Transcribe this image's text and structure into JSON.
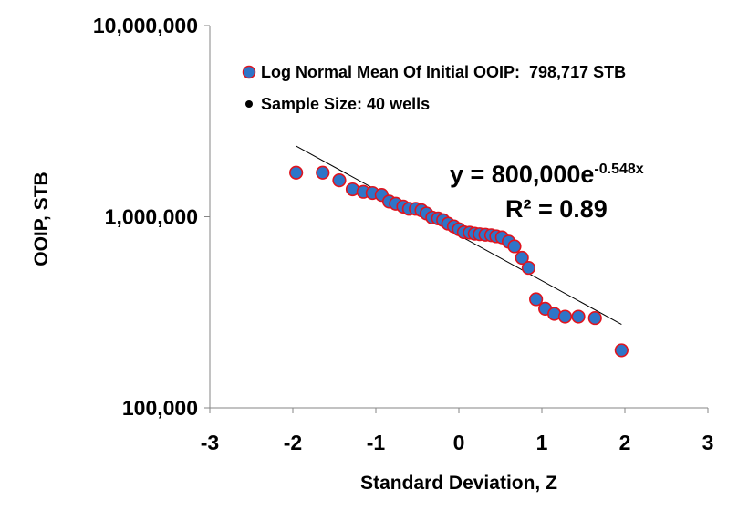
{
  "chart_data": {
    "type": "scatter",
    "title": "",
    "xlabel": "Standard Deviation, Z",
    "ylabel": "OOIP, STB",
    "xlim": [
      -3,
      3
    ],
    "ylim": [
      100000,
      10000000
    ],
    "yscale": "log",
    "grid": false,
    "x_ticks": [
      "-3",
      "-2",
      "-1",
      "0",
      "1",
      "2",
      "3"
    ],
    "y_ticks": [
      "10,000,000",
      "1,000,000",
      "100,000"
    ],
    "legend_position": "top-left",
    "legend": [
      {
        "name": "Log Normal Mean Of Initial OOIP:  798,717 STB",
        "marker": "circle-blue-red"
      },
      {
        "name": "Sample Size: 40 wells",
        "marker": "small-black-dot"
      }
    ],
    "marker_fill": "#2E75C8",
    "marker_edge": "#E0141E",
    "trendline_color": "#000000",
    "trendline": {
      "type": "exponential",
      "a": 800000,
      "b": -0.548,
      "x_range": [
        -1.96,
        1.96
      ]
    },
    "annotations": {
      "equation_prefix": "y = 800,000e",
      "equation_exponent": "-0.548x",
      "r_squared": "R² = 0.89"
    },
    "series": [
      {
        "x": [
          -1.96,
          -1.64,
          -1.44,
          -1.28,
          -1.15,
          -1.04,
          -0.93,
          -0.84,
          -0.76,
          -0.67,
          -0.6,
          -0.52,
          -0.45,
          -0.39,
          -0.32,
          -0.25,
          -0.19,
          -0.13,
          -0.06,
          0,
          0.06,
          0.13,
          0.19,
          0.25,
          0.32,
          0.39,
          0.45,
          0.52,
          0.6,
          0.67,
          0.76,
          0.84,
          0.93,
          1.04,
          1.15,
          1.28,
          1.44,
          1.64,
          1.96
        ],
        "y": [
          1700000,
          1700000,
          1550000,
          1390000,
          1350000,
          1330000,
          1300000,
          1200000,
          1170000,
          1130000,
          1100000,
          1100000,
          1080000,
          1040000,
          990000,
          980000,
          960000,
          920000,
          890000,
          860000,
          830000,
          825000,
          815000,
          810000,
          805000,
          800000,
          790000,
          780000,
          740000,
          700000,
          610000,
          540000,
          370000,
          330000,
          310000,
          300000,
          300000,
          295000,
          200000
        ]
      }
    ]
  }
}
